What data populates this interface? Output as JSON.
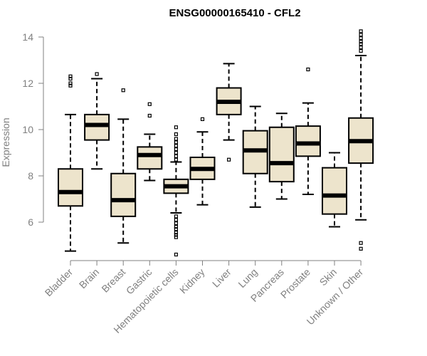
{
  "chart_data": {
    "type": "boxplot",
    "title": "ENSG00000165410 - CFL2",
    "xlabel": "",
    "ylabel": "Expression",
    "ylim": [
      4.5,
      14.3
    ],
    "yticks": [
      6,
      8,
      10,
      12,
      14
    ],
    "categories": [
      "Bladder",
      "Brain",
      "Breast",
      "Gastric",
      "Hematopoietic cells",
      "Kidney",
      "Liver",
      "Lung",
      "Pancreas",
      "Prostate",
      "Skin",
      "Unknown / Other"
    ],
    "boxes": [
      {
        "category": "Bladder",
        "min": 4.75,
        "q1": 6.7,
        "median": 7.3,
        "q3": 8.3,
        "max": 10.65,
        "outliers": [
          11.9,
          12.0,
          12.2,
          12.3
        ]
      },
      {
        "category": "Brain",
        "min": 8.3,
        "q1": 9.55,
        "median": 10.2,
        "q3": 10.65,
        "max": 12.2,
        "outliers": [
          12.4
        ]
      },
      {
        "category": "Breast",
        "min": 5.1,
        "q1": 6.25,
        "median": 6.95,
        "q3": 8.1,
        "max": 10.45,
        "outliers": [
          11.7
        ]
      },
      {
        "category": "Gastric",
        "min": 7.8,
        "q1": 8.3,
        "median": 8.9,
        "q3": 9.25,
        "max": 9.8,
        "outliers": [
          10.6,
          11.1
        ]
      },
      {
        "category": "Hematopoietic cells",
        "min": 6.4,
        "q1": 7.25,
        "median": 7.55,
        "q3": 7.85,
        "max": 8.6,
        "outliers": [
          8.7,
          8.85,
          9.0,
          9.15,
          9.3,
          9.45,
          9.6,
          9.8,
          10.1,
          6.25,
          6.1,
          5.95,
          5.8,
          5.7,
          5.55,
          5.45,
          5.35,
          4.6
        ]
      },
      {
        "category": "Kidney",
        "min": 6.75,
        "q1": 7.85,
        "median": 8.3,
        "q3": 8.8,
        "max": 9.9,
        "outliers": [
          10.45
        ]
      },
      {
        "category": "Liver",
        "min": 9.55,
        "q1": 10.65,
        "median": 11.2,
        "q3": 11.8,
        "max": 12.85,
        "outliers": [
          8.7
        ]
      },
      {
        "category": "Lung",
        "min": 6.65,
        "q1": 8.1,
        "median": 9.1,
        "q3": 9.95,
        "max": 11.0,
        "outliers": []
      },
      {
        "category": "Pancreas",
        "min": 7.0,
        "q1": 7.75,
        "median": 8.55,
        "q3": 10.1,
        "max": 10.7,
        "outliers": []
      },
      {
        "category": "Prostate",
        "min": 7.2,
        "q1": 8.85,
        "median": 9.4,
        "q3": 10.15,
        "max": 11.15,
        "outliers": [
          12.6
        ]
      },
      {
        "category": "Skin",
        "min": 5.8,
        "q1": 6.35,
        "median": 7.15,
        "q3": 8.35,
        "max": 9.0,
        "outliers": []
      },
      {
        "category": "Unknown / Other",
        "min": 6.1,
        "q1": 8.55,
        "median": 9.5,
        "q3": 10.5,
        "max": 13.2,
        "outliers": [
          13.4,
          13.55,
          13.7,
          13.8,
          13.95,
          14.1,
          14.25,
          5.1,
          4.85
        ]
      }
    ]
  }
}
